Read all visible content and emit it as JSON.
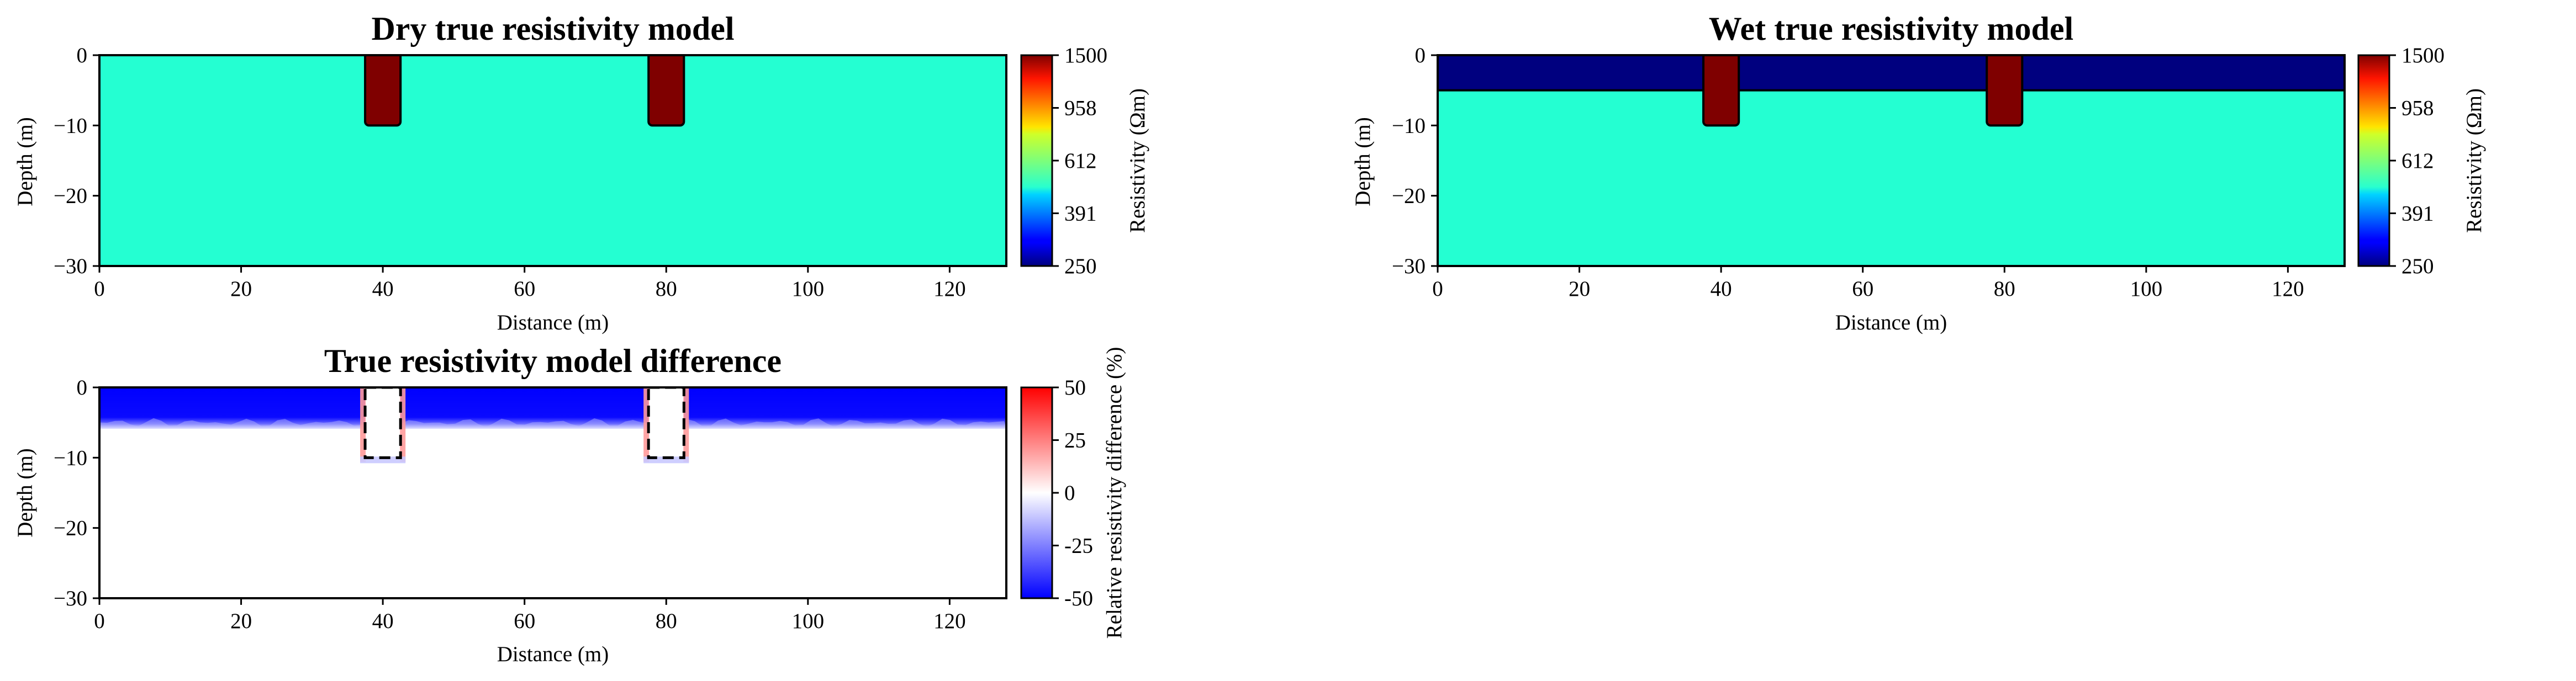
{
  "chart_data": [
    {
      "type": "heatmap",
      "title": "Dry true resistivity model",
      "xlabel": "Distance (m)",
      "ylabel": "Depth (m)",
      "xlim": [
        0,
        128
      ],
      "ylim": [
        -30,
        0
      ],
      "xticks": [
        "0",
        "20",
        "40",
        "60",
        "80",
        "100",
        "120"
      ],
      "yticks": [
        "0",
        "−10",
        "−20",
        "−30"
      ],
      "colorbar": {
        "label": "Resistivity (Ωm)",
        "ticks": [
          "1500",
          "958",
          "612",
          "391",
          "250"
        ],
        "range": [
          250,
          1500
        ],
        "scale": "log"
      },
      "background_resistivity": 500,
      "layers": [],
      "blocks": [
        {
          "x_range": [
            37.5,
            42.5
          ],
          "depth_range": [
            -10,
            0
          ],
          "resistivity": 1500
        },
        {
          "x_range": [
            77.5,
            82.5
          ],
          "depth_range": [
            -10,
            0
          ],
          "resistivity": 1500
        }
      ]
    },
    {
      "type": "heatmap",
      "title": "Wet true resistivity model",
      "xlabel": "Distance (m)",
      "ylabel": "Depth (m)",
      "xlim": [
        0,
        128
      ],
      "ylim": [
        -30,
        0
      ],
      "xticks": [
        "0",
        "20",
        "40",
        "60",
        "80",
        "100",
        "120"
      ],
      "yticks": [
        "0",
        "−10",
        "−20",
        "−30"
      ],
      "colorbar": {
        "label": "Resistivity (Ωm)",
        "ticks": [
          "1500",
          "958",
          "612",
          "391",
          "250"
        ],
        "range": [
          250,
          1500
        ],
        "scale": "log"
      },
      "background_resistivity": 500,
      "layers": [
        {
          "depth_range": [
            -5,
            0
          ],
          "resistivity": 250
        }
      ],
      "blocks": [
        {
          "x_range": [
            37.5,
            42.5
          ],
          "depth_range": [
            -10,
            0
          ],
          "resistivity": 1500
        },
        {
          "x_range": [
            77.5,
            82.5
          ],
          "depth_range": [
            -10,
            0
          ],
          "resistivity": 1500
        }
      ]
    },
    {
      "type": "heatmap",
      "title": "True resistivity model difference",
      "xlabel": "Distance (m)",
      "ylabel": "Depth (m)",
      "xlim": [
        0,
        128
      ],
      "ylim": [
        -30,
        0
      ],
      "xticks": [
        "0",
        "20",
        "40",
        "60",
        "80",
        "100",
        "120"
      ],
      "yticks": [
        "0",
        "−10",
        "−20",
        "−30"
      ],
      "colorbar": {
        "label": "Relative resistivity difference (%)",
        "ticks": [
          "50",
          "25",
          "0",
          "-25",
          "-50"
        ],
        "range": [
          -50,
          50
        ],
        "colormap": "bwr"
      },
      "layers": [
        {
          "depth_range": [
            -5,
            0
          ],
          "difference_percent": -50
        }
      ],
      "background_difference_percent": 0,
      "outlined_blocks": [
        {
          "x_range": [
            37.5,
            42.5
          ],
          "depth_range": [
            -10,
            0
          ]
        },
        {
          "x_range": [
            77.5,
            82.5
          ],
          "depth_range": [
            -10,
            0
          ]
        }
      ]
    }
  ],
  "colors": {
    "background_model": "#24ffd2",
    "high_resistivity_block": "#7f0000",
    "wet_layer": "#00007f",
    "diff_negative": "#0000ff",
    "diff_zero": "#ffffff",
    "diff_positive": "#ff0000"
  }
}
